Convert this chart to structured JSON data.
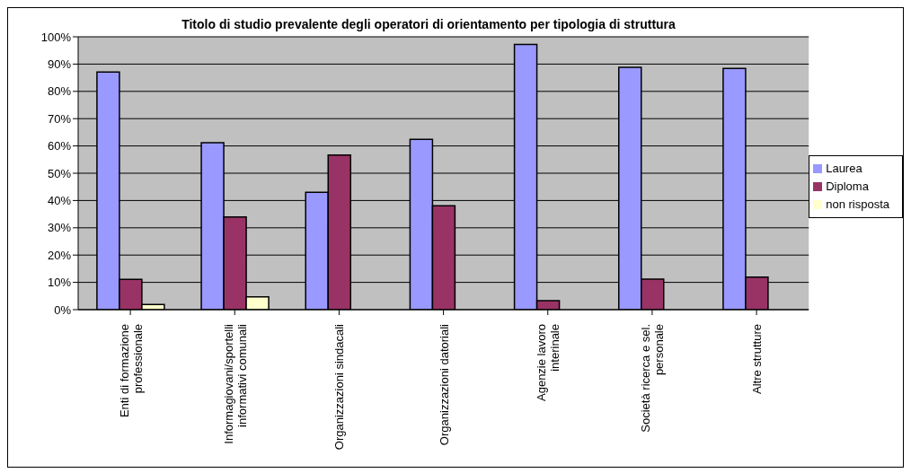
{
  "chart_data": {
    "type": "bar",
    "title": "Titolo di studio prevalente degli operatori di orientamento per tipologia di struttura",
    "categories": [
      "Enti di formazione professionale",
      "Informagiovani/sportelli informativi comunali",
      "Organizzazioni sindacali",
      "Organizzazioni datoriali",
      "Agenzie lavoro interinale",
      "Società ricerca e sel. personale",
      "Altre strutture"
    ],
    "series": [
      {
        "name": "Laurea",
        "color": "#9999ff",
        "values": [
          87.1,
          61.2,
          43,
          62.4,
          97.2,
          88.8,
          88.4
        ]
      },
      {
        "name": "Diploma",
        "color": "#993366",
        "values": [
          11.1,
          34,
          56.7,
          38.1,
          3.3,
          11.2,
          11.9
        ]
      },
      {
        "name": "non risposta",
        "color": "#ffffcc",
        "values": [
          1.9,
          4.7,
          null,
          null,
          null,
          null,
          null
        ]
      }
    ],
    "ylim": [
      0,
      100
    ],
    "yticks": [
      {
        "value": 0,
        "label": "0%"
      },
      {
        "value": 10,
        "label": "10%"
      },
      {
        "value": 20,
        "label": "20%"
      },
      {
        "value": 30,
        "label": "30%"
      },
      {
        "value": 40,
        "label": "40%"
      },
      {
        "value": 50,
        "label": "50%"
      },
      {
        "value": 60,
        "label": "60%"
      },
      {
        "value": 70,
        "label": "70%"
      },
      {
        "value": 80,
        "label": "80%"
      },
      {
        "value": 90,
        "label": "90%"
      },
      {
        "value": 100,
        "label": "100%"
      }
    ],
    "grid": "y",
    "legend": "right"
  }
}
